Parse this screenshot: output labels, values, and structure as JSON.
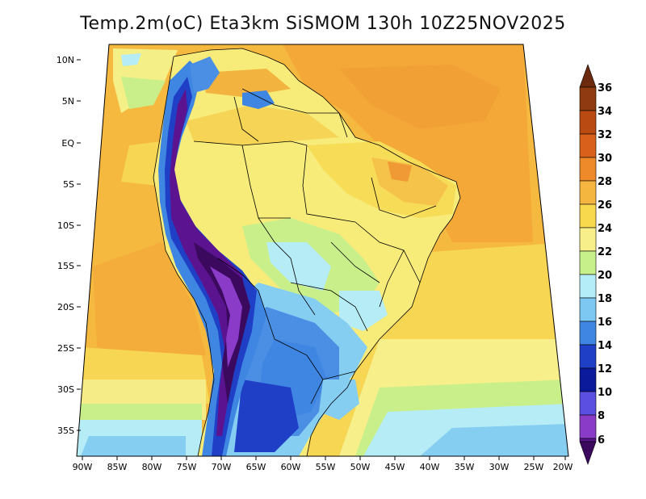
{
  "title": "Temp.2m(oC) Eta3km SiSMOM 130h 10Z25NOV2025",
  "map": {
    "lat_ticks": [
      "10N",
      "5N",
      "EQ",
      "5S",
      "10S",
      "15S",
      "20S",
      "25S",
      "30S",
      "35S"
    ],
    "lon_ticks": [
      "90W",
      "85W",
      "80W",
      "75W",
      "70W",
      "65W",
      "60W",
      "55W",
      "50W",
      "45W",
      "40W",
      "35W",
      "30W",
      "25W",
      "20W"
    ]
  },
  "colorbar": {
    "labels": [
      "36",
      "34",
      "32",
      "30",
      "28",
      "26",
      "24",
      "22",
      "20",
      "18",
      "16",
      "14",
      "12",
      "10",
      "8",
      "6"
    ],
    "colors": [
      "#6b2a0e",
      "#8f3a10",
      "#b84a12",
      "#d9601a",
      "#ef8a2a",
      "#f5b640",
      "#f8d84d",
      "#f7f08a",
      "#c8f08a",
      "#b4ecf7",
      "#7cc8f2",
      "#3f86e2",
      "#1f3fc7",
      "#0a1a9a",
      "#5a4fe0",
      "#8a3cc9",
      "#5b138f",
      "#3b0a5f"
    ]
  }
}
